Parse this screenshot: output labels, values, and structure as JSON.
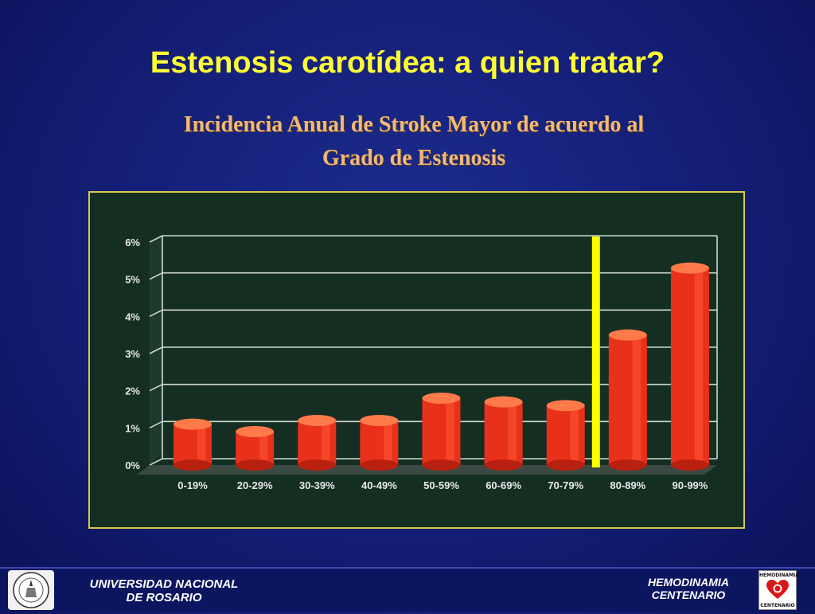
{
  "slide": {
    "title": "Estenosis carotídea: a quien tratar?"
  },
  "chart_data": {
    "type": "bar",
    "title": "Incidencia Anual de Stroke Mayor de acuerdo al Grado de Estenosis",
    "title_lines": [
      "Incidencia Anual de Stroke Mayor de acuerdo al",
      "Grado de Estenosis"
    ],
    "categories": [
      "0-19%",
      "20-29%",
      "30-39%",
      "40-49%",
      "50-59%",
      "60-69%",
      "70-79%",
      "80-89%",
      "90-99%"
    ],
    "values": [
      1.1,
      0.9,
      1.2,
      1.2,
      1.8,
      1.7,
      1.6,
      3.5,
      5.3
    ],
    "y_ticks": [
      "0%",
      "1%",
      "2%",
      "3%",
      "4%",
      "5%",
      "6%"
    ],
    "ylim": [
      0,
      6
    ],
    "grid": true,
    "marker_between": [
      "70-79%",
      "80-89%"
    ],
    "colors": {
      "bar": "#e8301a",
      "bar_top": "#ff7a4a",
      "panel_bg": "#142e22",
      "frame": "#d8c84a",
      "marker": "#ffff00"
    }
  },
  "footer": {
    "left_line1": "UNIVERSIDAD NACIONAL",
    "left_line2": "DE ROSARIO",
    "right_line1": "HEMODINAMIA",
    "right_line2": "CENTENARIO",
    "logo_top": "HEMODINAMIA",
    "logo_bottom": "CENTENARIO"
  }
}
